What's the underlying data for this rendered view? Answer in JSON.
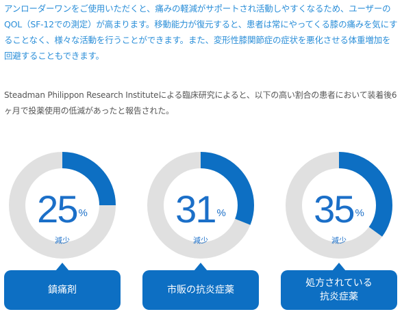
{
  "intro": {
    "paragraph1": "アンローダーワンをご使用いただくと、痛みの軽減がサポートされ活動しやすくなるため、ユーザーのQOL（SF-12での測定）が高まります。移動能力が復元すると、患者は常にやってくる膝の痛みを気にすることなく、様々な活動を行うことができます。また、変形性膝関節症の症状を悪化させる体重増加を回避することもできます。",
    "paragraph2": "Steadman Philippon Research Instituteによる臨床研究によると、以下の高い割合の患者において装着後6ヶ月で投薬使用の低減があったと報告された。"
  },
  "colors": {
    "accent": "#0d6fc3",
    "ring_track": "#e0e0e0",
    "text_blue": "#2a8ed8"
  },
  "stats": [
    {
      "value": "25",
      "unit": "%",
      "sub": "減少",
      "label": "鎮痛剤",
      "fraction": 0.25
    },
    {
      "value": "31",
      "unit": "%",
      "sub": "減少",
      "label": "市販の抗炎症薬",
      "fraction": 0.31
    },
    {
      "value": "35",
      "unit": "%",
      "sub": "減少",
      "label": "処方されている\n抗炎症薬",
      "fraction": 0.35
    }
  ]
}
